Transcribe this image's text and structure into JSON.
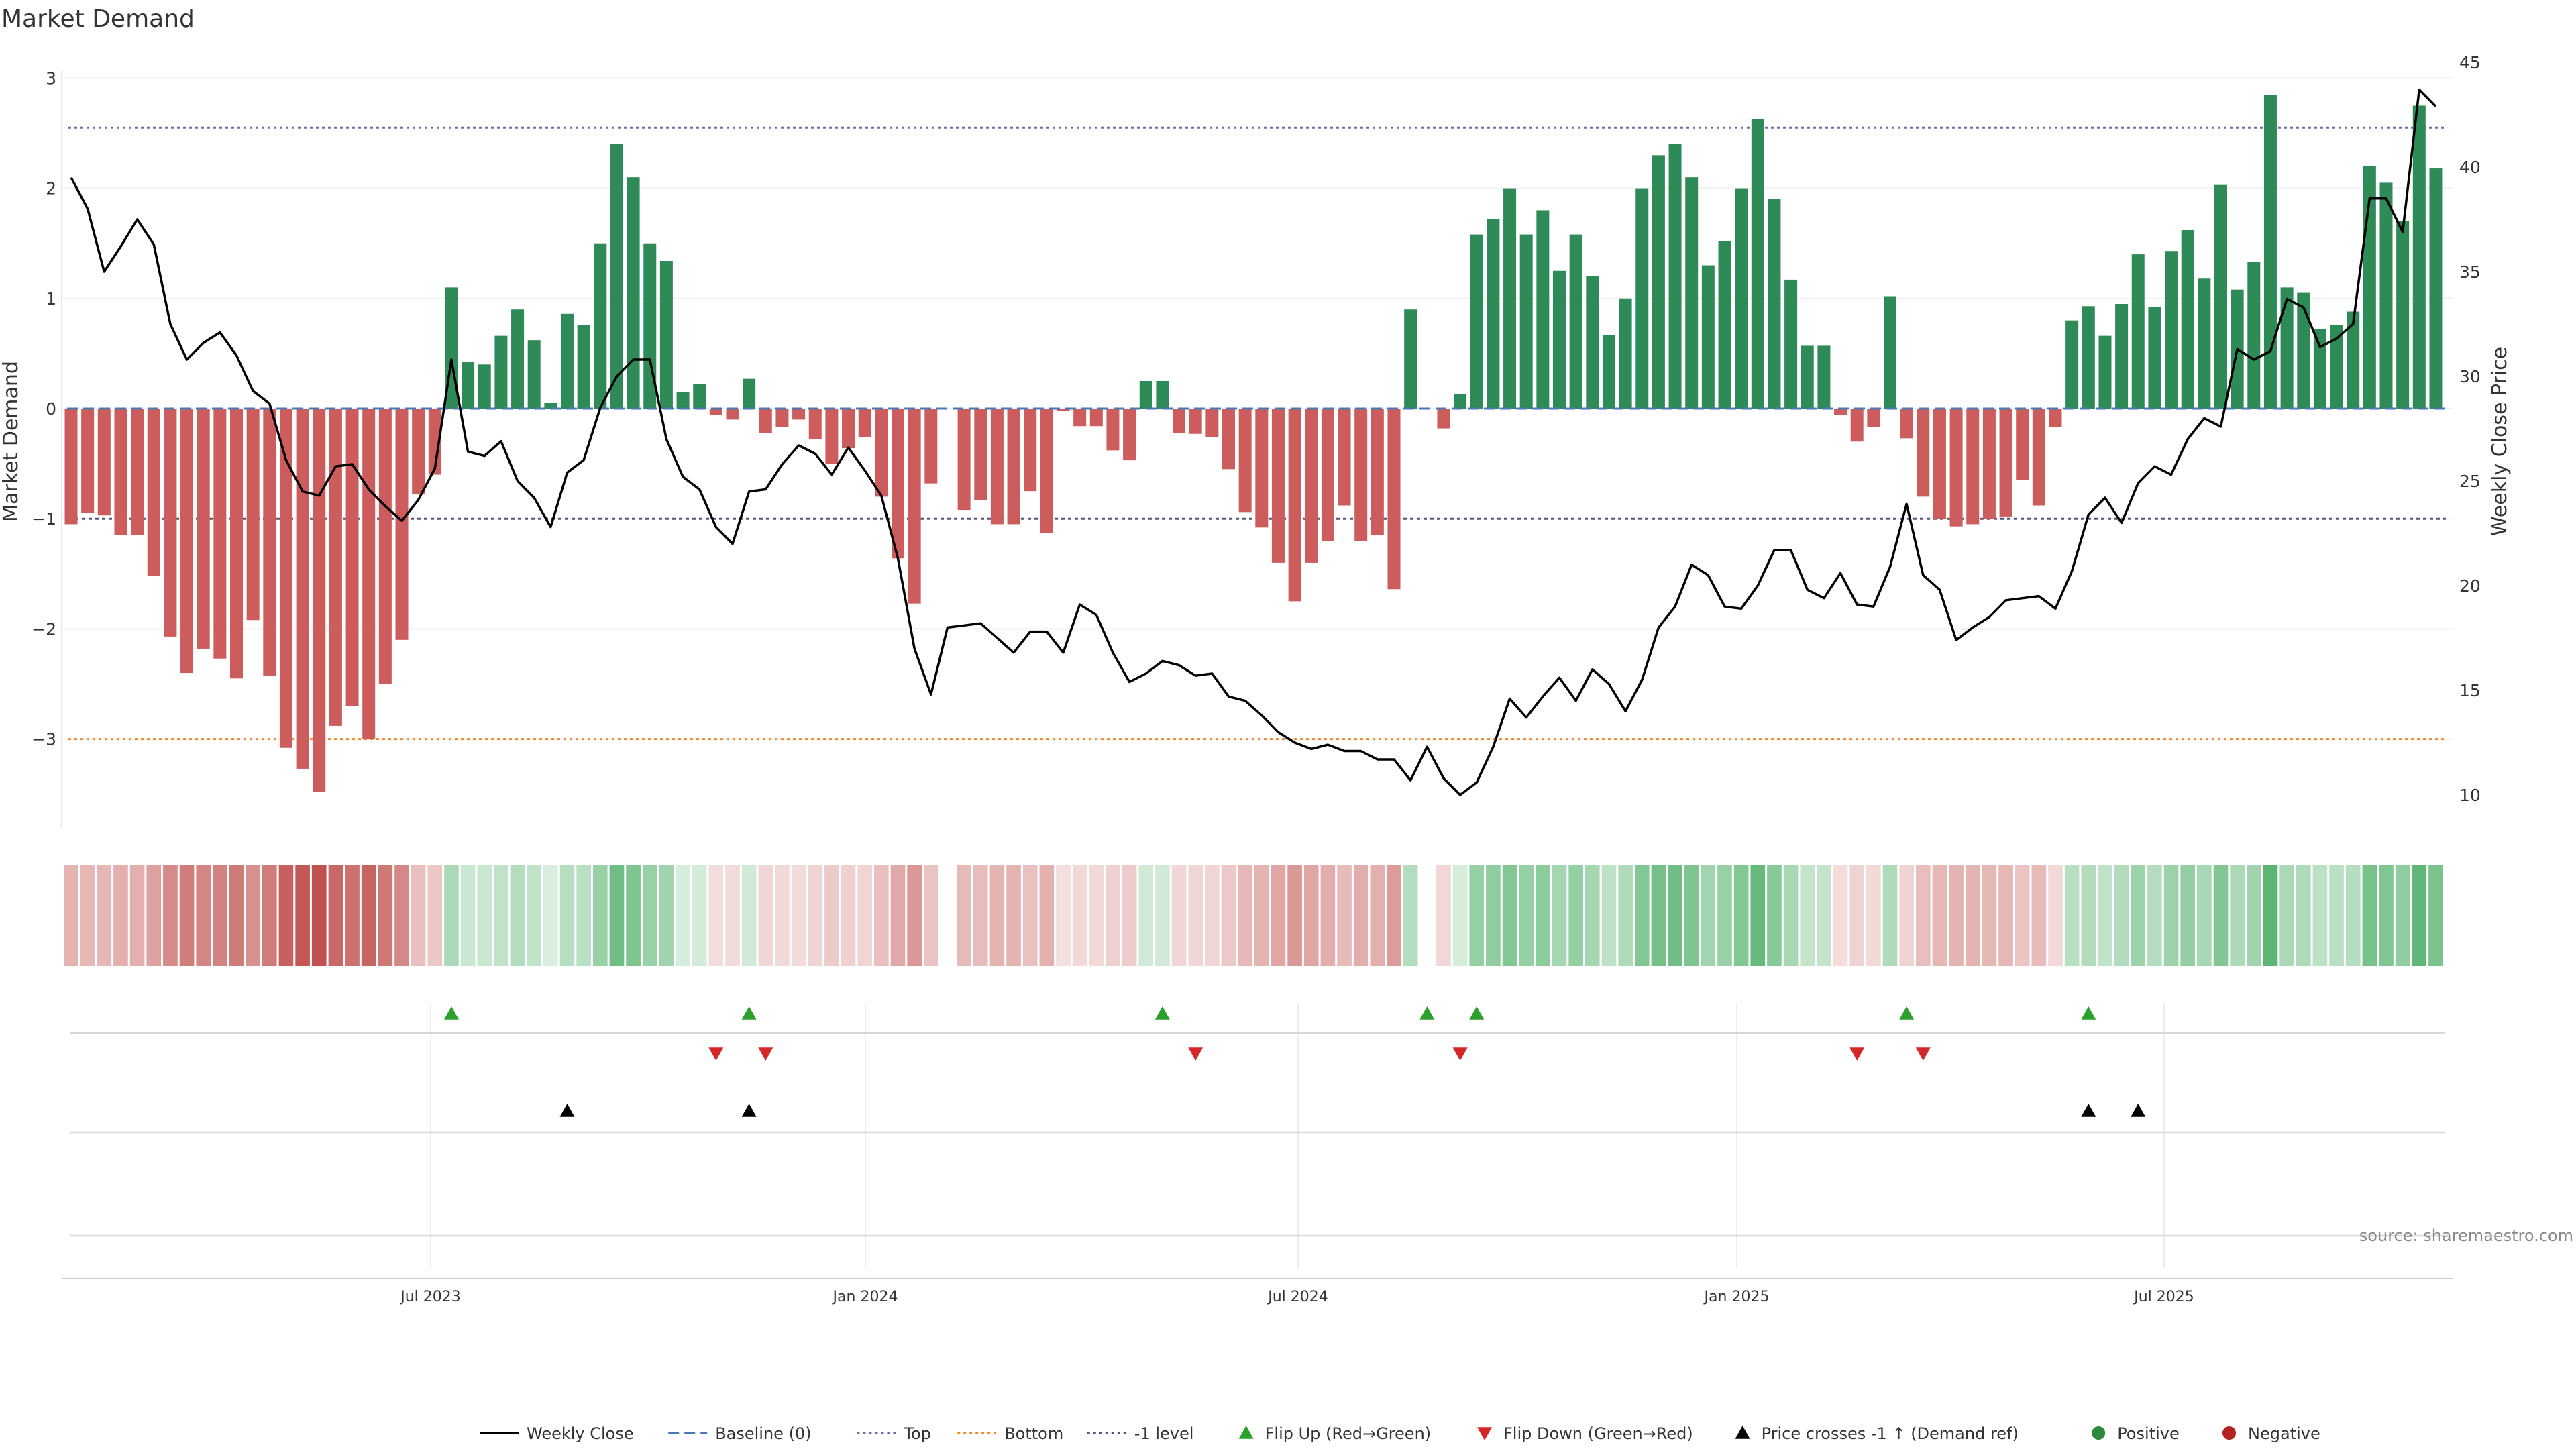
{
  "chart_data": {
    "type": "bar",
    "title": "Market Demand",
    "ylabel": "Market Demand",
    "y2label": "Weekly Close Price",
    "ylim": [
      -3.8,
      3.05
    ],
    "y2lim": [
      8.5,
      46
    ],
    "yticks": [
      "3",
      "2",
      "1",
      "0",
      "−1",
      "−2",
      "−3"
    ],
    "y2ticks": [
      "45",
      "40",
      "35",
      "30",
      "25",
      "20",
      "15",
      "10"
    ],
    "xtick_labels": [
      "Jul 2023",
      "Jan 2024",
      "Jul 2024",
      "Jan 2025",
      "Jul 2025"
    ],
    "reference_lines": {
      "top": 2.55,
      "bottom": -3.0,
      "minus_one": -1.0
    },
    "demand": [
      -1.05,
      -0.95,
      -0.97,
      -1.15,
      -1.15,
      -1.52,
      -2.07,
      -2.4,
      -2.18,
      -2.27,
      -2.45,
      -1.92,
      -2.43,
      -3.08,
      -3.27,
      -3.48,
      -2.88,
      -2.7,
      -3.0,
      -2.5,
      -2.1,
      -0.78,
      -0.6,
      1.1,
      0.42,
      0.4,
      0.66,
      0.9,
      0.62,
      0.05,
      0.86,
      0.76,
      1.5,
      2.4,
      2.1,
      1.5,
      1.34,
      0.15,
      0.22,
      -0.06,
      -0.1,
      0.27,
      -0.22,
      -0.17,
      -0.1,
      -0.28,
      -0.5,
      -0.36,
      -0.26,
      -0.8,
      -1.36,
      -1.77,
      -0.68,
      0.0,
      -0.92,
      -0.83,
      -1.05,
      -1.05,
      -0.75,
      -1.13,
      -0.02,
      -0.16,
      -0.16,
      -0.38,
      -0.47,
      0.25,
      0.25,
      -0.22,
      -0.23,
      -0.26,
      -0.55,
      -0.94,
      -1.08,
      -1.4,
      -1.75,
      -1.4,
      -1.2,
      -0.88,
      -1.2,
      -1.15,
      -1.64,
      0.9,
      0.0,
      -0.18,
      0.13,
      1.58,
      1.72,
      2.0,
      1.58,
      1.8,
      1.25,
      1.58,
      1.2,
      0.67,
      1.0,
      2.0,
      2.3,
      2.4,
      2.1,
      1.3,
      1.52,
      2.0,
      2.63,
      1.9,
      1.17,
      0.57,
      0.57,
      -0.06,
      -0.3,
      -0.17,
      1.02,
      -0.27,
      -0.8,
      -1.0,
      -1.07,
      -1.05,
      -1.0,
      -0.98,
      -0.65,
      -0.88,
      -0.17,
      0.8,
      0.93,
      0.66,
      0.95,
      1.4,
      0.92,
      1.43,
      1.62,
      1.18,
      2.03,
      1.08,
      1.33,
      2.85,
      1.1,
      1.05,
      0.72,
      0.76,
      0.88,
      2.2,
      2.05,
      1.7,
      2.75,
      2.18
    ],
    "weekly_close": [
      39.5,
      38.0,
      35.0,
      36.2,
      37.5,
      36.3,
      32.5,
      30.8,
      31.6,
      32.1,
      31.0,
      29.3,
      28.7,
      26.0,
      24.5,
      24.3,
      25.7,
      25.8,
      24.6,
      23.8,
      23.1,
      24.1,
      25.6,
      30.8,
      26.4,
      26.2,
      26.9,
      25.0,
      24.2,
      22.8,
      25.4,
      26.0,
      28.5,
      30.0,
      30.8,
      30.8,
      27.0,
      25.2,
      24.6,
      22.8,
      22.0,
      24.5,
      24.6,
      25.8,
      26.7,
      26.3,
      25.3,
      26.6,
      25.5,
      24.3,
      21.3,
      17.0,
      14.8,
      18.0,
      18.1,
      18.2,
      17.5,
      16.8,
      17.8,
      17.8,
      16.8,
      19.1,
      18.6,
      16.8,
      15.4,
      15.8,
      16.4,
      16.2,
      15.7,
      15.8,
      14.7,
      14.5,
      13.8,
      13.0,
      12.5,
      12.2,
      12.4,
      12.1,
      12.1,
      11.7,
      11.7,
      10.7,
      12.3,
      10.8,
      10.0,
      10.6,
      12.3,
      14.6,
      13.7,
      14.7,
      15.6,
      14.5,
      16.0,
      15.3,
      14.0,
      15.5,
      18.0,
      19.0,
      21.0,
      20.5,
      19.0,
      18.9,
      20.0,
      21.7,
      21.7,
      19.8,
      19.4,
      20.6,
      19.1,
      19.0,
      20.9,
      23.9,
      20.5,
      19.8,
      17.4,
      18.0,
      18.5,
      19.3,
      19.4,
      19.5,
      18.9,
      20.7,
      23.4,
      24.2,
      23.0,
      24.9,
      25.7,
      25.3,
      27.0,
      28.0,
      27.6,
      31.3,
      30.8,
      31.2,
      33.7,
      33.3,
      31.4,
      31.8,
      32.5,
      38.5,
      38.5,
      36.9,
      43.7,
      42.9
    ],
    "signal_markers": {
      "flip_up": [
        23,
        41,
        66,
        82,
        85,
        111,
        122
      ],
      "flip_down": [
        39,
        42,
        68,
        84,
        108,
        112
      ],
      "price_cross": [
        30,
        41,
        122,
        125
      ]
    },
    "legend": [
      {
        "label": "Weekly Close",
        "symbol": "line",
        "color": "#000000"
      },
      {
        "label": "Baseline (0)",
        "symbol": "dashed",
        "color": "#4a78b5"
      },
      {
        "label": "Top",
        "symbol": "dotted",
        "color": "#6b6ba8"
      },
      {
        "label": "Bottom",
        "symbol": "dotted",
        "color": "#ef8a2c"
      },
      {
        "label": "-1 level",
        "symbol": "dotted",
        "color": "#555577"
      },
      {
        "label": "Flip Up (Red→Green)",
        "symbol": "triangle-up",
        "color": "#2ca02c"
      },
      {
        "label": "Flip Down (Green→Red)",
        "symbol": "triangle-down",
        "color": "#d62728"
      },
      {
        "label": "Price crosses -1 ↑ (Demand ref)",
        "symbol": "triangle-up",
        "color": "#000000"
      },
      {
        "label": "Positive",
        "symbol": "dot",
        "color": "#2a8a3a"
      },
      {
        "label": "Negative",
        "symbol": "dot",
        "color": "#b22222"
      }
    ],
    "colors": {
      "positive_bar": "#2e8b57",
      "negative_bar": "#cd5c5c",
      "price_line": "#000000",
      "top_line": "#6b6ba8",
      "bottom_line": "#ef8a2c",
      "minus_one_line": "#555577",
      "baseline": "#4a78b5"
    },
    "source": "source: sharemaestro.com"
  }
}
